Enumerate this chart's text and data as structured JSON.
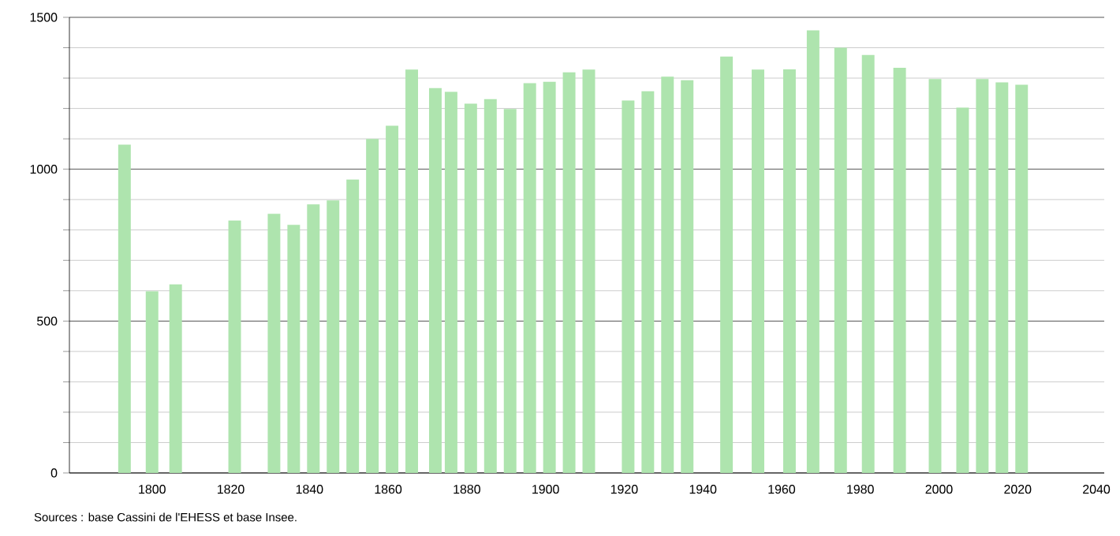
{
  "chart_data": {
    "type": "bar",
    "color": "#aee4ae",
    "x": [
      1793,
      1800,
      1806,
      1821,
      1831,
      1836,
      1841,
      1846,
      1851,
      1856,
      1861,
      1866,
      1872,
      1876,
      1881,
      1886,
      1891,
      1896,
      1901,
      1906,
      1911,
      1921,
      1926,
      1931,
      1936,
      1946,
      1954,
      1962,
      1968,
      1975,
      1982,
      1990,
      1999,
      2006,
      2011,
      2016,
      2021
    ],
    "values": [
      1081,
      598,
      621,
      831,
      853,
      817,
      884,
      897,
      966,
      1100,
      1143,
      1328,
      1267,
      1255,
      1216,
      1231,
      1198,
      1283,
      1288,
      1319,
      1328,
      1226,
      1257,
      1305,
      1293,
      1371,
      1328,
      1329,
      1457,
      1400,
      1376,
      1334,
      1297,
      1203,
      1297,
      1286,
      1278
    ],
    "xlim": [
      1779,
      2042
    ],
    "xticks": [
      1800,
      1820,
      1840,
      1860,
      1880,
      1900,
      1920,
      1940,
      1960,
      1980,
      2000,
      2020,
      2040
    ],
    "ylim": [
      0,
      1500
    ],
    "yticks": [
      0,
      500,
      1000,
      1500
    ],
    "grid": "y",
    "annotations": [
      "Sources : base Cassini de l'EHESS et base Insee."
    ]
  }
}
